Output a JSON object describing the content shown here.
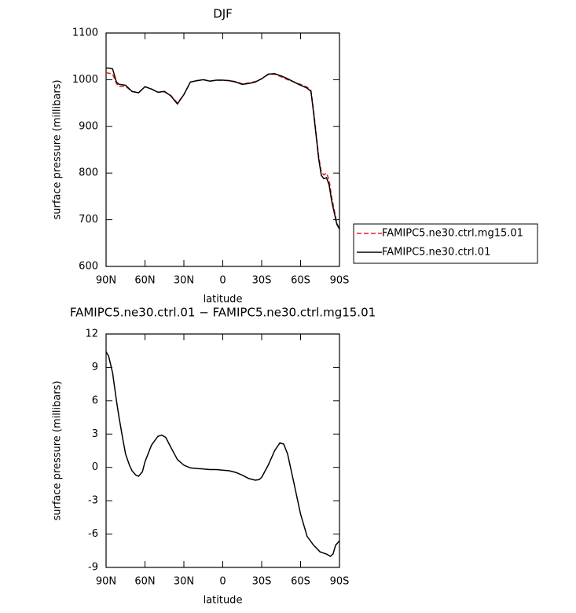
{
  "chart_data": [
    {
      "type": "line",
      "title": "DJF",
      "xlabel": "latitude",
      "ylabel": "surface pressure (millibars)",
      "x": [
        90,
        88,
        85,
        82,
        80,
        75,
        70,
        65,
        60,
        55,
        50,
        45,
        40,
        35,
        30,
        25,
        20,
        15,
        10,
        5,
        0,
        -5,
        -10,
        -15,
        -20,
        -25,
        -30,
        -35,
        -40,
        -45,
        -50,
        -55,
        -60,
        -65,
        -68,
        -70,
        -72,
        -74,
        -76,
        -78,
        -80,
        -82,
        -84,
        -86,
        -88,
        -90
      ],
      "series": [
        {
          "name": "FAMIPC5.ne30.ctrl.mg15.01",
          "color": "#e0201c",
          "line_style": "dashed",
          "values": [
            1015,
            1014,
            1012,
            992,
            985,
            986,
            975,
            972,
            985,
            980,
            973,
            974,
            966,
            950,
            968,
            995,
            998,
            1000,
            997,
            999,
            999,
            998,
            996,
            991,
            993,
            996,
            1002,
            1011,
            1012,
            1006,
            1000,
            995,
            990,
            984,
            977,
            935,
            885,
            835,
            802,
            796,
            800,
            785,
            748,
            720,
            692,
            681
          ]
        },
        {
          "name": "FAMIPC5.ne30.ctrl.01",
          "color": "#000000",
          "line_style": "solid",
          "values": [
            1025,
            1025,
            1023,
            995,
            990,
            988,
            975,
            972,
            985,
            980,
            973,
            975,
            965,
            948,
            968,
            995,
            998,
            1000,
            997,
            999,
            999,
            998,
            995,
            990,
            992,
            995,
            1002,
            1012,
            1013,
            1008,
            1002,
            995,
            988,
            982,
            975,
            930,
            880,
            830,
            795,
            788,
            790,
            775,
            740,
            715,
            690,
            680
          ]
        }
      ],
      "xlim": [
        90,
        -90
      ],
      "xticks": [
        {
          "value": 90,
          "label": "90N"
        },
        {
          "value": 60,
          "label": "60N"
        },
        {
          "value": 30,
          "label": "30N"
        },
        0,
        {
          "value": -30,
          "label": "30S"
        },
        {
          "value": -60,
          "label": "60S"
        },
        {
          "value": -90,
          "label": "90S"
        }
      ],
      "ylim": [
        600,
        1100
      ],
      "yticks": [
        600,
        700,
        800,
        900,
        1000,
        1100
      ]
    },
    {
      "type": "line",
      "title": "FAMIPC5.ne30.ctrl.01 − FAMIPC5.ne30.ctrl.mg15.01",
      "xlabel": "latitude",
      "ylabel": "surface pressure (millibars)",
      "x": [
        90,
        88,
        85,
        82,
        80,
        77,
        75,
        72,
        70,
        67,
        65,
        62,
        60,
        55,
        50,
        47,
        44,
        40,
        35,
        30,
        25,
        20,
        15,
        10,
        5,
        0,
        -5,
        -10,
        -15,
        -20,
        -25,
        -28,
        -30,
        -35,
        -40,
        -44,
        -47,
        -50,
        -55,
        -60,
        -65,
        -70,
        -75,
        -80,
        -83,
        -85,
        -87,
        -90
      ],
      "series": [
        {
          "color": "#000000",
          "line_style": "solid",
          "values": [
            10.4,
            10,
            8.5,
            6,
            4.5,
            2.5,
            1.2,
            0.2,
            -0.3,
            -0.7,
            -0.8,
            -0.4,
            0.5,
            2,
            2.8,
            2.9,
            2.7,
            1.8,
            0.7,
            0.2,
            -0.05,
            -0.1,
            -0.15,
            -0.2,
            -0.2,
            -0.25,
            -0.3,
            -0.45,
            -0.7,
            -1,
            -1.15,
            -1.1,
            -0.9,
            0.2,
            1.5,
            2.2,
            2.1,
            1.2,
            -1.5,
            -4.2,
            -6.2,
            -7,
            -7.6,
            -7.8,
            -8,
            -7.8,
            -7,
            -6.6
          ]
        }
      ],
      "xlim": [
        90,
        -90
      ],
      "xticks": [
        {
          "value": 90,
          "label": "90N"
        },
        {
          "value": 60,
          "label": "60N"
        },
        {
          "value": 30,
          "label": "30N"
        },
        0,
        {
          "value": -30,
          "label": "30S"
        },
        {
          "value": -60,
          "label": "60S"
        },
        {
          "value": -90,
          "label": "90S"
        }
      ],
      "ylim": [
        -9,
        12
      ],
      "yticks": [
        -9,
        -6,
        -3,
        0,
        3,
        6,
        9,
        12
      ]
    }
  ]
}
